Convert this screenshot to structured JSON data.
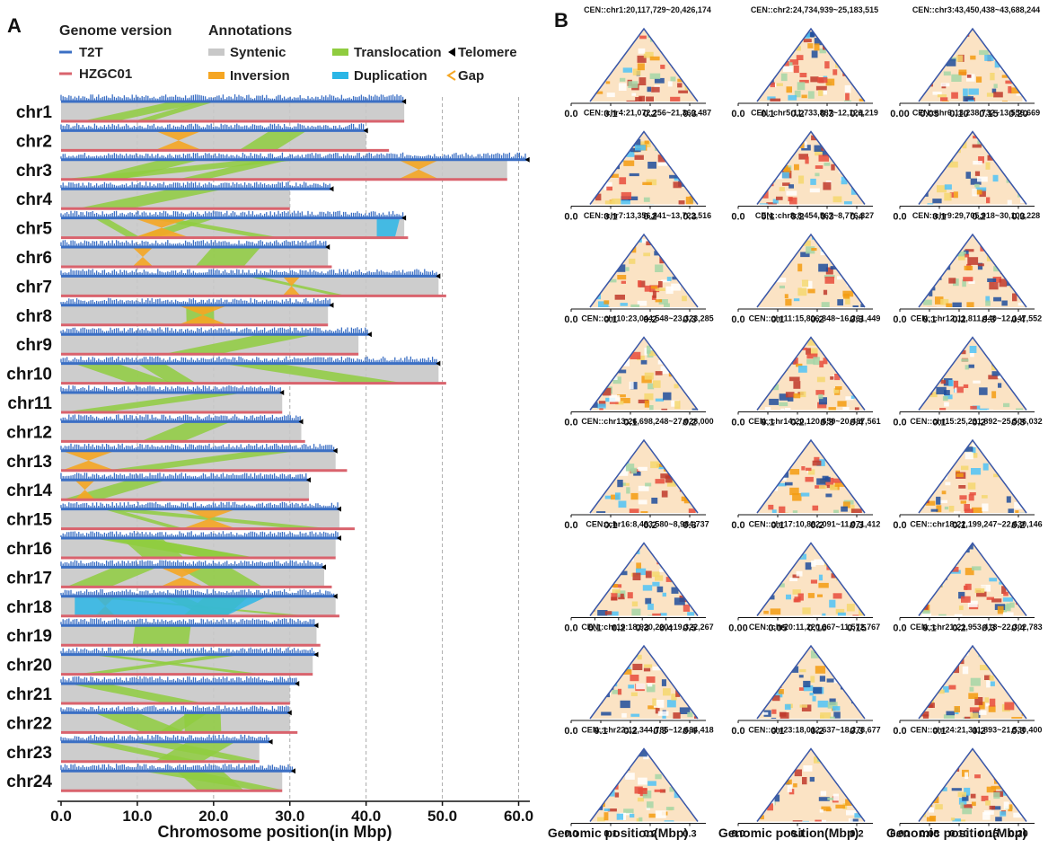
{
  "panel_a": {
    "panel_label": "A",
    "legend": {
      "genome_heading": "Genome version",
      "annot_heading": "Annotations",
      "genome_entries": [
        {
          "label": "T2T",
          "color": "#3b6fc4"
        },
        {
          "label": "HZGC01",
          "color": "#d9636d"
        }
      ],
      "annot_entries": [
        {
          "label": "Syntenic",
          "color": "#c8c8c8",
          "kind": "swatch"
        },
        {
          "label": "Translocation",
          "color": "#8fcc3f",
          "kind": "swatch"
        },
        {
          "label": "Telomere",
          "color": "#000000",
          "kind": "triangle"
        },
        {
          "label": "Inversion",
          "color": "#f5a623",
          "kind": "swatch"
        },
        {
          "label": "Duplication",
          "color": "#2bb6e6",
          "kind": "swatch"
        },
        {
          "label": "Gap",
          "color": "#f5a623",
          "kind": "chevron"
        }
      ]
    },
    "xlabel": "Chromosome position(in Mbp)",
    "chart_data": {
      "type": "bar",
      "xlabel": "Chromosome position(in Mbp)",
      "xlim": [
        0,
        61
      ],
      "x_ticks": [
        "0.0",
        "10.0",
        "20.0",
        "30.0",
        "40.0",
        "50.0",
        "60.0"
      ],
      "categories": [
        "chr1",
        "chr2",
        "chr3",
        "chr4",
        "chr5",
        "chr6",
        "chr7",
        "chr8",
        "chr9",
        "chr10",
        "chr11",
        "chr12",
        "chr13",
        "chr14",
        "chr15",
        "chr16",
        "chr17",
        "chr18",
        "chr19",
        "chr20",
        "chr21",
        "chr22",
        "chr23",
        "chr24"
      ],
      "series": [
        {
          "name": "T2T",
          "values": [
            45.0,
            40.0,
            61.2,
            35.5,
            45.0,
            35.0,
            49.5,
            35.5,
            40.5,
            49.5,
            29.0,
            31.5,
            36.0,
            32.5,
            36.5,
            36.5,
            34.5,
            36.0,
            33.5,
            33.5,
            31.0,
            30.0,
            27.5,
            30.5
          ]
        },
        {
          "name": "HZGC01",
          "values": [
            45.0,
            43.0,
            58.5,
            30.0,
            45.5,
            35.5,
            50.5,
            35.0,
            39.0,
            50.5,
            29.0,
            32.0,
            37.5,
            32.5,
            38.5,
            36.0,
            35.5,
            36.5,
            34.0,
            33.0,
            30.0,
            31.0,
            26.0,
            29.0
          ]
        }
      ]
    }
  },
  "panel_b": {
    "panel_label": "B",
    "xlabel": "Genomic position(Mbp)",
    "chart_data": [
      {
        "type": "heatmap",
        "title": "CEN::chr1:20,117,729~20,426,174",
        "x_ticks": [
          "0.0",
          "0.1",
          "0.2",
          "0.3"
        ]
      },
      {
        "type": "heatmap",
        "title": "CEN::chr2:24,734,939~25,183,515",
        "x_ticks": [
          "0.0",
          "0.1",
          "0.2",
          "0.3",
          "0.4"
        ]
      },
      {
        "type": "heatmap",
        "title": "CEN::chr3:43,450,438~43,688,244",
        "x_ticks": [
          "0.00",
          "0.05",
          "0.10",
          "0.15",
          "0.20"
        ]
      },
      {
        "type": "heatmap",
        "title": "CEN::chr4:21,072,256~21,360,487",
        "x_ticks": [
          "0.0",
          "0.1",
          "0.2",
          "0.3"
        ]
      },
      {
        "type": "heatmap",
        "title": "CEN::chr5:11,733,887~12,126,219",
        "x_ticks": [
          "0.0",
          "0.1",
          "0.2",
          "0.3",
          "0.4"
        ]
      },
      {
        "type": "heatmap",
        "title": "CEN::chr6:13,238,732~13,556,669",
        "x_ticks": [
          "0.0",
          "0.1",
          "0.2",
          "0.3"
        ]
      },
      {
        "type": "heatmap",
        "title": "CEN::chr7:13,356,841~13,722,516",
        "x_ticks": [
          "0.0",
          "0.1",
          "0.2",
          "0.3"
        ]
      },
      {
        "type": "heatmap",
        "title": "CEN::chr8:8,454,567~8,776,827",
        "x_ticks": [
          "0.0",
          "0.1",
          "0.2",
          "0.3"
        ]
      },
      {
        "type": "heatmap",
        "title": "CEN::chr9:29,705,918~30,100,228",
        "x_ticks": [
          "0.0",
          "0.1",
          "0.2",
          "0.3",
          "0.4"
        ]
      },
      {
        "type": "heatmap",
        "title": "CEN::chr10:23,044,548~23,323,285",
        "x_ticks": [
          "0.0",
          "0.1",
          "0.2"
        ]
      },
      {
        "type": "heatmap",
        "title": "CEN::chr11:15,806,348~16,261,449",
        "x_ticks": [
          "0.0",
          "0.1",
          "0.2",
          "0.3",
          "0.4"
        ]
      },
      {
        "type": "heatmap",
        "title": "CEN::chr12:11,811,440~12,147,552",
        "x_ticks": [
          "0.0",
          "0.1",
          "0.2",
          "0.3"
        ]
      },
      {
        "type": "heatmap",
        "title": "CEN::chr13:26,698,248~27,028,000",
        "x_ticks": [
          "0.0",
          "0.1",
          "0.2",
          "0.3"
        ]
      },
      {
        "type": "heatmap",
        "title": "CEN::chr14:20,120,659~20,487,561",
        "x_ticks": [
          "0.0",
          "0.1",
          "0.2",
          "0.3"
        ]
      },
      {
        "type": "heatmap",
        "title": "CEN::chr15:25,231,892~25,506,032",
        "x_ticks": [
          "0.0",
          "0.1",
          "0.2"
        ]
      },
      {
        "type": "heatmap",
        "title": "CEN::chr16:8,483,580~8,984,737",
        "x_ticks": [
          "0.0",
          "0.1",
          "0.2",
          "0.3",
          "0.4",
          "0.5"
        ]
      },
      {
        "type": "heatmap",
        "title": "CEN::chr17:10,882,091~11,071,412",
        "x_ticks": [
          "0.00",
          "0.05",
          "0.10",
          "0.15"
        ]
      },
      {
        "type": "heatmap",
        "title": "CEN::chr18:22,199,247~22,630,146",
        "x_ticks": [
          "0.0",
          "0.1",
          "0.2",
          "0.3",
          "0.4"
        ]
      },
      {
        "type": "heatmap",
        "title": "CEN::chr19:18,920,220~19,322,267",
        "x_ticks": [
          "0.0",
          "0.1",
          "0.2",
          "0.3",
          "0.4"
        ]
      },
      {
        "type": "heatmap",
        "title": "CEN::chr20:11,220,667~11,572,767",
        "x_ticks": [
          "0.0",
          "0.1",
          "0.2",
          "0.3"
        ]
      },
      {
        "type": "heatmap",
        "title": "CEN::chr21:21,953,418~22,302,783",
        "x_ticks": [
          "0.0",
          "0.1",
          "0.2",
          "0.3"
        ]
      },
      {
        "type": "heatmap",
        "title": "CEN::chr22:12,344,785~12,684,418",
        "x_ticks": [
          "0.0",
          "0.1",
          "0.2",
          "0.3"
        ]
      },
      {
        "type": "heatmap",
        "title": "CEN::chr23:18,012,637~18,278,677",
        "x_ticks": [
          "0.0",
          "0.1",
          "0.2"
        ]
      },
      {
        "type": "heatmap",
        "title": "CEN::chr24:21,311,893~21,530,400",
        "x_ticks": [
          "0.00",
          "0.05",
          "0.10",
          "0.15",
          "0.20"
        ]
      }
    ]
  }
}
